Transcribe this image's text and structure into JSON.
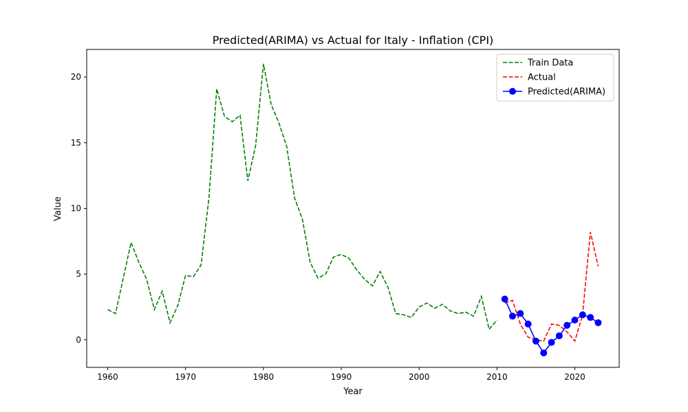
{
  "chart_data": {
    "type": "line",
    "title": "Predicted(ARIMA) vs Actual for Italy - Inflation (CPI)",
    "xlabel": "Year",
    "ylabel": "Value",
    "xlim": [
      1957.3,
      2025.7
    ],
    "ylim": [
      -2.1,
      22.1
    ],
    "x_ticks": [
      1960,
      1970,
      1980,
      1990,
      2000,
      2010,
      2020
    ],
    "y_ticks": [
      0,
      5,
      10,
      15,
      20
    ],
    "grid": false,
    "legend_position": "top-right",
    "series": [
      {
        "name": "Train Data",
        "color": "#008000",
        "style": "dashed",
        "markers": false,
        "x": [
          1960,
          1961,
          1962,
          1963,
          1964,
          1965,
          1966,
          1967,
          1968,
          1969,
          1970,
          1971,
          1972,
          1973,
          1974,
          1975,
          1976,
          1977,
          1978,
          1979,
          1980,
          1981,
          1982,
          1983,
          1984,
          1985,
          1986,
          1987,
          1988,
          1989,
          1990,
          1991,
          1992,
          1993,
          1994,
          1995,
          1996,
          1997,
          1998,
          1999,
          2000,
          2001,
          2002,
          2003,
          2004,
          2005,
          2006,
          2007,
          2008,
          2009,
          2010
        ],
        "y": [
          2.3,
          2.0,
          4.7,
          7.4,
          5.9,
          4.6,
          2.3,
          3.7,
          1.3,
          2.6,
          4.9,
          4.8,
          5.7,
          10.8,
          19.1,
          17.0,
          16.6,
          17.1,
          12.1,
          14.8,
          21.0,
          17.9,
          16.5,
          14.7,
          10.8,
          9.2,
          5.9,
          4.7,
          5.0,
          6.3,
          6.5,
          6.2,
          5.3,
          4.6,
          4.1,
          5.2,
          4.0,
          2.0,
          1.9,
          1.7,
          2.5,
          2.8,
          2.4,
          2.7,
          2.2,
          2.0,
          2.1,
          1.8,
          3.3,
          0.8,
          1.5
        ]
      },
      {
        "name": "Actual",
        "color": "#ff0000",
        "style": "dashed",
        "markers": false,
        "x": [
          2011,
          2012,
          2013,
          2014,
          2015,
          2016,
          2017,
          2018,
          2019,
          2020,
          2021,
          2022,
          2023
        ],
        "y": [
          2.8,
          3.0,
          1.2,
          0.2,
          0.0,
          -0.1,
          1.2,
          1.1,
          0.6,
          -0.1,
          1.9,
          8.2,
          5.6
        ]
      },
      {
        "name": "Predicted(ARIMA)",
        "color": "#0000ff",
        "style": "solid",
        "markers": true,
        "x": [
          2011,
          2012,
          2013,
          2014,
          2015,
          2016,
          2017,
          2018,
          2019,
          2020,
          2021,
          2022,
          2023
        ],
        "y": [
          3.1,
          1.8,
          2.0,
          1.2,
          -0.1,
          -1.0,
          -0.2,
          0.3,
          1.1,
          1.5,
          1.9,
          1.7,
          1.3
        ]
      }
    ]
  }
}
